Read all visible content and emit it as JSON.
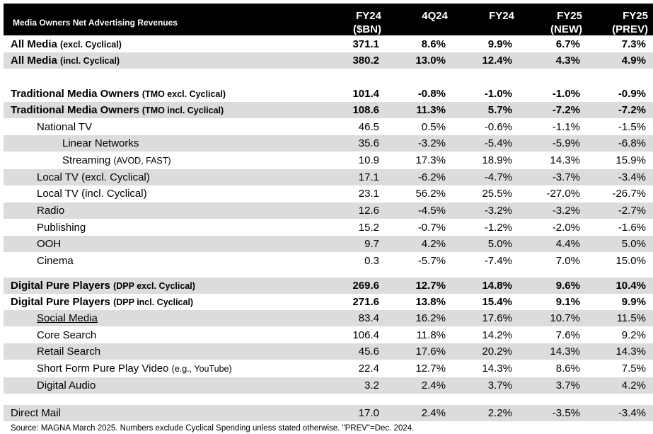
{
  "header": {
    "title": "Media Owners Net Advertising Revenues",
    "columns": [
      [
        "FY24",
        "($BN)"
      ],
      [
        "4Q24"
      ],
      [
        "FY24"
      ],
      [
        "FY25",
        "(NEW)"
      ],
      [
        "FY25",
        "(PREV)"
      ]
    ]
  },
  "rows": [
    {
      "label": "All Media",
      "note": "(excl. Cyclical)",
      "values": [
        "371.1",
        "8.6%",
        "9.9%",
        "6.7%",
        "7.3%"
      ]
    },
    {
      "label": "All Media",
      "note": "(incl. Cyclical)",
      "values": [
        "380.2",
        "13.0%",
        "12.4%",
        "4.3%",
        "4.9%"
      ]
    },
    {
      "label": "Traditional Media Owners",
      "note": "(TMO excl. Cyclical)",
      "values": [
        "101.4",
        "-0.8%",
        "-1.0%",
        "-1.0%",
        "-0.9%"
      ]
    },
    {
      "label": "Traditional Media Owners",
      "note": "(TMO incl. Cyclical)",
      "values": [
        "108.6",
        "11.3%",
        "5.7%",
        "-7.2%",
        "-7.2%"
      ]
    },
    {
      "label": "National TV",
      "values": [
        "46.5",
        "0.5%",
        "-0.6%",
        "-1.1%",
        "-1.5%"
      ]
    },
    {
      "label": "Linear Networks",
      "values": [
        "35.6",
        "-3.2%",
        "-5.4%",
        "-5.9%",
        "-6.8%"
      ]
    },
    {
      "label": "Streaming",
      "note": "(AVOD, FAST)",
      "values": [
        "10.9",
        "17.3%",
        "18.9%",
        "14.3%",
        "15.9%"
      ]
    },
    {
      "label": "Local TV (excl. Cyclical)",
      "values": [
        "17.1",
        "-6.2%",
        "-4.7%",
        "-3.7%",
        "-3.4%"
      ]
    },
    {
      "label": "Local TV (incl. Cyclical)",
      "values": [
        "23.1",
        "56.2%",
        "25.5%",
        "-27.0%",
        "-26.7%"
      ]
    },
    {
      "label": "Radio",
      "values": [
        "12.6",
        "-4.5%",
        "-3.2%",
        "-3.2%",
        "-2.7%"
      ]
    },
    {
      "label": "Publishing",
      "values": [
        "15.2",
        "-0.7%",
        "-1.2%",
        "-2.0%",
        "-1.6%"
      ]
    },
    {
      "label": "OOH",
      "values": [
        "9.7",
        "4.2%",
        "5.0%",
        "4.4%",
        "5.0%"
      ]
    },
    {
      "label": "Cinema",
      "values": [
        "0.3",
        "-5.7%",
        "-7.4%",
        "7.0%",
        "15.0%"
      ]
    },
    {
      "label": "Digital Pure Players",
      "note": "(DPP excl. Cyclical)",
      "values": [
        "269.6",
        "12.7%",
        "14.8%",
        "9.6%",
        "10.4%"
      ]
    },
    {
      "label": "Digital Pure Players",
      "note": "(DPP incl. Cyclical)",
      "values": [
        "271.6",
        "13.8%",
        "15.4%",
        "9.1%",
        "9.9%"
      ]
    },
    {
      "label": "Social Media",
      "values": [
        "83.4",
        "16.2%",
        "17.6%",
        "10.7%",
        "11.5%"
      ]
    },
    {
      "label": "Core Search",
      "values": [
        "106.4",
        "11.8%",
        "14.2%",
        "7.6%",
        "9.2%"
      ]
    },
    {
      "label": "Retail Search",
      "values": [
        "45.6",
        "17.6%",
        "20.2%",
        "14.3%",
        "14.3%"
      ]
    },
    {
      "label": "Short Form Pure Play Video",
      "note": "(e.g., YouTube)",
      "values": [
        "22.4",
        "12.7%",
        "14.3%",
        "8.6%",
        "7.5%"
      ]
    },
    {
      "label": "Digital Audio",
      "values": [
        "3.2",
        "2.4%",
        "3.7%",
        "3.7%",
        "4.2%"
      ]
    },
    {
      "label": "Direct Mail",
      "values": [
        "17.0",
        "2.4%",
        "2.2%",
        "-3.5%",
        "-3.4%"
      ]
    }
  ],
  "footer": {
    "source": "Source: MAGNA March 2025. Numbers exclude Cyclical Spending unless stated otherwise. \"PREV\"=Dec. 2024."
  }
}
